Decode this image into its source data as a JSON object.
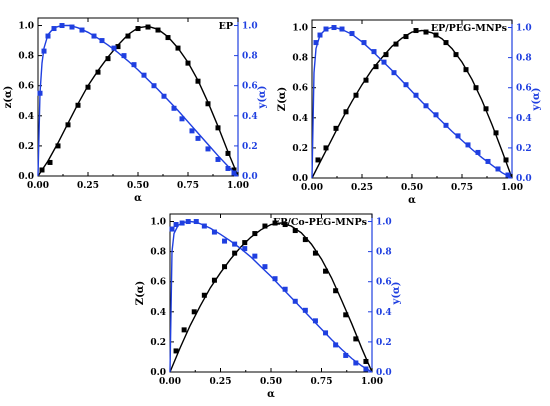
{
  "chart_data": [
    {
      "type": "line",
      "title": "EP",
      "xlabel": "α",
      "ylabel_left": "z(α)",
      "ylabel_right": "y(α)",
      "xlim": [
        0,
        1
      ],
      "ylim_left": [
        0,
        1.05
      ],
      "ylim_right": [
        0,
        1.05
      ],
      "x_ticks": [
        "0.00",
        "0.25",
        "0.50",
        "0.75",
        "1.00"
      ],
      "y_ticks": [
        "0.0",
        "0.2",
        "0.4",
        "0.6",
        "0.8",
        "1.0"
      ],
      "series": [
        {
          "axis": "left",
          "color": "#000000",
          "marker": "square",
          "x": [
            0.02,
            0.06,
            0.1,
            0.15,
            0.2,
            0.25,
            0.3,
            0.35,
            0.4,
            0.45,
            0.5,
            0.55,
            0.6,
            0.65,
            0.7,
            0.75,
            0.8,
            0.85,
            0.9,
            0.95,
            0.98
          ],
          "y": [
            0.04,
            0.09,
            0.2,
            0.34,
            0.47,
            0.59,
            0.69,
            0.78,
            0.86,
            0.93,
            0.98,
            0.99,
            0.97,
            0.92,
            0.85,
            0.75,
            0.63,
            0.48,
            0.32,
            0.15,
            0.04
          ],
          "curve_x": [
            0,
            0.05,
            0.1,
            0.15,
            0.2,
            0.25,
            0.3,
            0.35,
            0.4,
            0.45,
            0.5,
            0.55,
            0.6,
            0.65,
            0.7,
            0.75,
            0.8,
            0.85,
            0.9,
            0.95,
            1.0
          ],
          "curve_y": [
            0,
            0.1,
            0.22,
            0.35,
            0.48,
            0.6,
            0.7,
            0.79,
            0.87,
            0.94,
            0.985,
            0.995,
            0.975,
            0.925,
            0.85,
            0.755,
            0.635,
            0.49,
            0.33,
            0.16,
            0
          ]
        },
        {
          "axis": "right",
          "color": "#1f3fe0",
          "marker": "square",
          "x": [
            0.01,
            0.03,
            0.05,
            0.08,
            0.12,
            0.17,
            0.22,
            0.28,
            0.32,
            0.38,
            0.43,
            0.48,
            0.53,
            0.58,
            0.63,
            0.68,
            0.72,
            0.77,
            0.8,
            0.85,
            0.9,
            0.95,
            0.98
          ],
          "y": [
            0.55,
            0.83,
            0.93,
            0.98,
            1.0,
            0.99,
            0.97,
            0.93,
            0.9,
            0.85,
            0.8,
            0.74,
            0.67,
            0.6,
            0.53,
            0.45,
            0.38,
            0.3,
            0.25,
            0.18,
            0.11,
            0.05,
            0.02
          ],
          "curve_x": [
            0,
            0.01,
            0.02,
            0.03,
            0.05,
            0.08,
            0.12,
            0.16,
            0.2,
            0.25,
            0.3,
            0.35,
            0.4,
            0.45,
            0.5,
            0.55,
            0.6,
            0.65,
            0.7,
            0.75,
            0.8,
            0.85,
            0.9,
            0.95,
            1.0
          ],
          "curve_y": [
            0,
            0.55,
            0.75,
            0.85,
            0.94,
            0.985,
            1.0,
            1.0,
            0.985,
            0.955,
            0.915,
            0.87,
            0.82,
            0.765,
            0.705,
            0.64,
            0.575,
            0.505,
            0.435,
            0.36,
            0.285,
            0.21,
            0.135,
            0.065,
            0
          ]
        }
      ]
    },
    {
      "type": "line",
      "title": "EP/PEG-MNPs",
      "xlabel": "α",
      "ylabel_left": "Z(α)",
      "ylabel_right": "y(α)",
      "xlim": [
        0,
        1
      ],
      "ylim_left": [
        0,
        1.05
      ],
      "ylim_right": [
        0,
        1.05
      ],
      "x_ticks": [
        "0.00",
        "0.25",
        "0.50",
        "0.75",
        "1.00"
      ],
      "y_ticks": [
        "0.0",
        "0.2",
        "0.4",
        "0.6",
        "0.8",
        "1.0"
      ],
      "series": [
        {
          "axis": "left",
          "color": "#000000",
          "marker": "square",
          "x": [
            0.03,
            0.07,
            0.12,
            0.17,
            0.22,
            0.27,
            0.32,
            0.37,
            0.42,
            0.47,
            0.52,
            0.57,
            0.62,
            0.67,
            0.72,
            0.77,
            0.82,
            0.87,
            0.92,
            0.97
          ],
          "y": [
            0.12,
            0.2,
            0.33,
            0.44,
            0.55,
            0.65,
            0.74,
            0.82,
            0.89,
            0.94,
            0.98,
            0.97,
            0.95,
            0.9,
            0.82,
            0.72,
            0.6,
            0.46,
            0.3,
            0.12
          ],
          "curve_x": [
            0,
            0.05,
            0.1,
            0.15,
            0.2,
            0.25,
            0.3,
            0.35,
            0.4,
            0.45,
            0.5,
            0.55,
            0.6,
            0.65,
            0.7,
            0.75,
            0.8,
            0.85,
            0.9,
            0.95,
            1.0
          ],
          "curve_y": [
            0,
            0.13,
            0.26,
            0.39,
            0.51,
            0.62,
            0.72,
            0.8,
            0.875,
            0.93,
            0.97,
            0.98,
            0.965,
            0.925,
            0.86,
            0.77,
            0.655,
            0.515,
            0.355,
            0.18,
            0
          ]
        },
        {
          "axis": "right",
          "color": "#1f3fe0",
          "marker": "square",
          "x": [
            0.02,
            0.04,
            0.07,
            0.11,
            0.15,
            0.2,
            0.26,
            0.31,
            0.36,
            0.41,
            0.47,
            0.52,
            0.57,
            0.62,
            0.67,
            0.73,
            0.78,
            0.83,
            0.88,
            0.93,
            0.98
          ],
          "y": [
            0.9,
            0.95,
            0.99,
            1.0,
            0.99,
            0.96,
            0.9,
            0.84,
            0.77,
            0.7,
            0.62,
            0.55,
            0.48,
            0.42,
            0.35,
            0.28,
            0.22,
            0.17,
            0.11,
            0.06,
            0.02
          ],
          "curve_x": [
            0,
            0.01,
            0.02,
            0.04,
            0.07,
            0.1,
            0.13,
            0.16,
            0.2,
            0.25,
            0.3,
            0.35,
            0.4,
            0.45,
            0.5,
            0.55,
            0.6,
            0.65,
            0.7,
            0.75,
            0.8,
            0.85,
            0.9,
            0.95,
            1.0
          ],
          "curve_y": [
            0,
            0.7,
            0.86,
            0.95,
            0.99,
            1.0,
            0.995,
            0.98,
            0.955,
            0.905,
            0.845,
            0.78,
            0.715,
            0.645,
            0.575,
            0.505,
            0.44,
            0.375,
            0.31,
            0.25,
            0.19,
            0.135,
            0.085,
            0.035,
            0
          ]
        }
      ]
    },
    {
      "type": "line",
      "title": "EP/Co-PEG-MNPs",
      "xlabel": "α",
      "ylabel_left": "Z(α)",
      "ylabel_right": "y(α)",
      "xlim": [
        0,
        1
      ],
      "ylim_left": [
        0,
        1.05
      ],
      "ylim_right": [
        0,
        1.05
      ],
      "x_ticks": [
        "0.00",
        "0.25",
        "0.50",
        "0.75",
        "1.00"
      ],
      "y_ticks": [
        "0.0",
        "0.2",
        "0.4",
        "0.6",
        "0.8",
        "1.0"
      ],
      "series": [
        {
          "axis": "left",
          "color": "#000000",
          "marker": "square",
          "x": [
            0.03,
            0.07,
            0.12,
            0.17,
            0.22,
            0.27,
            0.32,
            0.37,
            0.42,
            0.47,
            0.52,
            0.57,
            0.62,
            0.67,
            0.72,
            0.77,
            0.82,
            0.87,
            0.92,
            0.97
          ],
          "y": [
            0.14,
            0.28,
            0.4,
            0.51,
            0.61,
            0.7,
            0.79,
            0.86,
            0.92,
            0.97,
            0.99,
            0.98,
            0.94,
            0.88,
            0.79,
            0.67,
            0.54,
            0.38,
            0.22,
            0.07
          ],
          "curve_x": [
            0,
            0.05,
            0.1,
            0.15,
            0.2,
            0.25,
            0.3,
            0.35,
            0.4,
            0.45,
            0.5,
            0.55,
            0.6,
            0.65,
            0.7,
            0.75,
            0.8,
            0.85,
            0.9,
            0.95,
            1.0
          ],
          "curve_y": [
            0,
            0.16,
            0.31,
            0.44,
            0.56,
            0.66,
            0.75,
            0.83,
            0.895,
            0.945,
            0.98,
            0.99,
            0.97,
            0.925,
            0.85,
            0.75,
            0.625,
            0.475,
            0.32,
            0.155,
            0
          ]
        },
        {
          "axis": "right",
          "color": "#1f3fe0",
          "marker": "square",
          "x": [
            0.01,
            0.03,
            0.06,
            0.09,
            0.13,
            0.17,
            0.22,
            0.27,
            0.32,
            0.37,
            0.42,
            0.47,
            0.52,
            0.57,
            0.62,
            0.67,
            0.72,
            0.77,
            0.82,
            0.87,
            0.92,
            0.97
          ],
          "y": [
            0.95,
            0.98,
            0.99,
            1.0,
            1.0,
            0.97,
            0.93,
            0.87,
            0.85,
            0.82,
            0.77,
            0.7,
            0.62,
            0.55,
            0.47,
            0.41,
            0.34,
            0.26,
            0.18,
            0.11,
            0.06,
            0.02
          ],
          "curve_x": [
            0,
            0.01,
            0.02,
            0.04,
            0.07,
            0.1,
            0.13,
            0.16,
            0.2,
            0.25,
            0.3,
            0.35,
            0.4,
            0.45,
            0.5,
            0.55,
            0.6,
            0.65,
            0.7,
            0.75,
            0.8,
            0.85,
            0.9,
            0.95,
            1.0
          ],
          "curve_y": [
            0,
            0.8,
            0.92,
            0.975,
            0.995,
            1.0,
            0.995,
            0.98,
            0.955,
            0.915,
            0.87,
            0.82,
            0.765,
            0.7,
            0.635,
            0.565,
            0.495,
            0.425,
            0.355,
            0.285,
            0.215,
            0.15,
            0.09,
            0.04,
            0
          ]
        }
      ]
    }
  ]
}
